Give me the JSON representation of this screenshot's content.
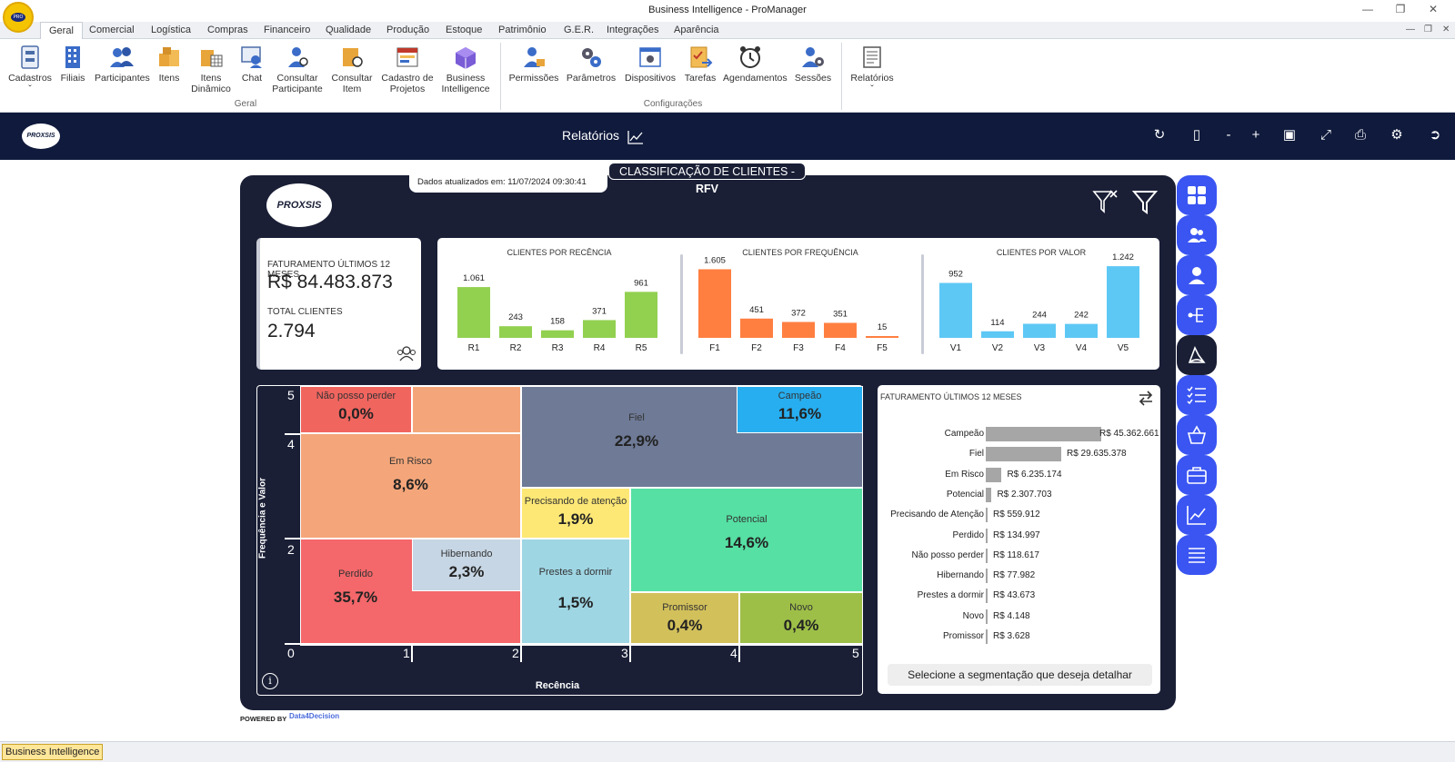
{
  "window": {
    "title": "Business Intelligence - ProManager"
  },
  "menu": {
    "tabs": [
      "Geral",
      "Comercial",
      "Logística",
      "Compras",
      "Financeiro",
      "Qualidade",
      "Produção",
      "Estoque",
      "Patrimônio",
      "G.E.R.",
      "Integrações",
      "Aparência"
    ]
  },
  "ribbon": {
    "geral_items": [
      "Cadastros",
      "Filiais",
      "Participantes",
      "Itens",
      "Itens Dinâmico",
      "Chat",
      "Consultar Participante",
      "Consultar Item",
      "Cadastro de Projetos",
      "Business Intelligence"
    ],
    "geral_group": "Geral",
    "config_items": [
      "Permissões",
      "Parâmetros",
      "Dispositivos",
      "Tarefas",
      "Agendamentos",
      "Sessões"
    ],
    "config_group": "Configurações",
    "relatorios": "Relatórios"
  },
  "topbar": {
    "title": "Relatórios",
    "brand": "PROXSIS"
  },
  "report": {
    "updated_label": "Dados atualizados em:",
    "updated_value": "11/07/2024 09:30:41",
    "title_main": "CLASSIFICAÇÃO DE CLIENTES - ",
    "title_bold": "RFV",
    "logo": "PROXSIS"
  },
  "kpi": {
    "revenue_label": "FATURAMENTO ÚLTIMOS 12 MESES",
    "revenue_value": "R$ 84.483.873",
    "clients_label": "TOTAL CLIENTES",
    "clients_value": "2.794"
  },
  "chart_data": [
    {
      "type": "bar",
      "title": "CLIENTES POR RECÊNCIA",
      "categories": [
        "R1",
        "R2",
        "R3",
        "R4",
        "R5"
      ],
      "values": [
        1061,
        243,
        158,
        371,
        961
      ],
      "labels": [
        "1.061",
        "243",
        "158",
        "371",
        "961"
      ],
      "color": "#92d050"
    },
    {
      "type": "bar",
      "title": "CLIENTES POR FREQUÊNCIA",
      "categories": [
        "F1",
        "F2",
        "F3",
        "F4",
        "F5"
      ],
      "values": [
        1605,
        451,
        372,
        351,
        15
      ],
      "labels": [
        "1.605",
        "451",
        "372",
        "351",
        "15"
      ],
      "color": "#ff7f41"
    },
    {
      "type": "bar",
      "title": "CLIENTES POR VALOR",
      "categories": [
        "V1",
        "V2",
        "V3",
        "V4",
        "V5"
      ],
      "values": [
        952,
        114,
        244,
        242,
        1242
      ],
      "labels": [
        "952",
        "114",
        "244",
        "242",
        "1.242"
      ],
      "color": "#5ec8f5"
    },
    {
      "type": "bar",
      "title": "FATURAMENTO ÚLTIMOS 12 MESES",
      "orientation": "horizontal",
      "categories": [
        "Campeão",
        "Fiel",
        "Em Risco",
        "Potencial",
        "Precisando de Atenção",
        "Perdido",
        "Não posso perder",
        "Hibernando",
        "Prestes a dormir",
        "Novo",
        "Promissor"
      ],
      "values": [
        45362661,
        29635378,
        6235174,
        2307703,
        559912,
        134997,
        118617,
        77982,
        43673,
        4148,
        3628
      ],
      "labels": [
        "R$ 45.362.661",
        "R$ 29.635.378",
        "R$ 6.235.174",
        "R$ 2.307.703",
        "R$ 559.912",
        "R$ 134.997",
        "R$ 118.617",
        "R$ 77.982",
        "R$ 43.673",
        "R$ 4.148",
        "R$ 3.628"
      ]
    }
  ],
  "matrix": {
    "xlabel": "Recência",
    "ylabel": "Frequência e Valor",
    "xticks": [
      "0",
      "1",
      "2",
      "3",
      "4",
      "5"
    ],
    "yticks": [
      "5",
      "4",
      "2"
    ],
    "segments": [
      {
        "name": "Não posso perder",
        "pct": "0,0%",
        "color": "#f1655f"
      },
      {
        "name": "Em Risco",
        "pct": "8,6%",
        "color": "#f4a67a"
      },
      {
        "name": "Fiel",
        "pct": "22,9%",
        "color": "#6e7a96"
      },
      {
        "name": "Campeão",
        "pct": "11,6%",
        "color": "#27aef0"
      },
      {
        "name": "Precisando de atenção",
        "pct": "1,9%",
        "color": "#fde876"
      },
      {
        "name": "Potencial",
        "pct": "14,6%",
        "color": "#56e0a3"
      },
      {
        "name": "Perdido",
        "pct": "35,7%",
        "color": "#f4676a"
      },
      {
        "name": "Hibernando",
        "pct": "2,3%",
        "color": "#c7d6e4"
      },
      {
        "name": "Prestes a dormir",
        "pct": "1,5%",
        "color": "#9fd6e4"
      },
      {
        "name": "Promissor",
        "pct": "0,4%",
        "color": "#d2c05b"
      },
      {
        "name": "Novo",
        "pct": "0,4%",
        "color": "#9dbf48"
      }
    ]
  },
  "bars_panel": {
    "select_label": "Selecione a segmentação que deseja detalhar"
  },
  "footer": {
    "powered": "POWERED BY",
    "partner": "Data4Decision"
  },
  "statusbar": {
    "item": "Business Intelligence"
  }
}
